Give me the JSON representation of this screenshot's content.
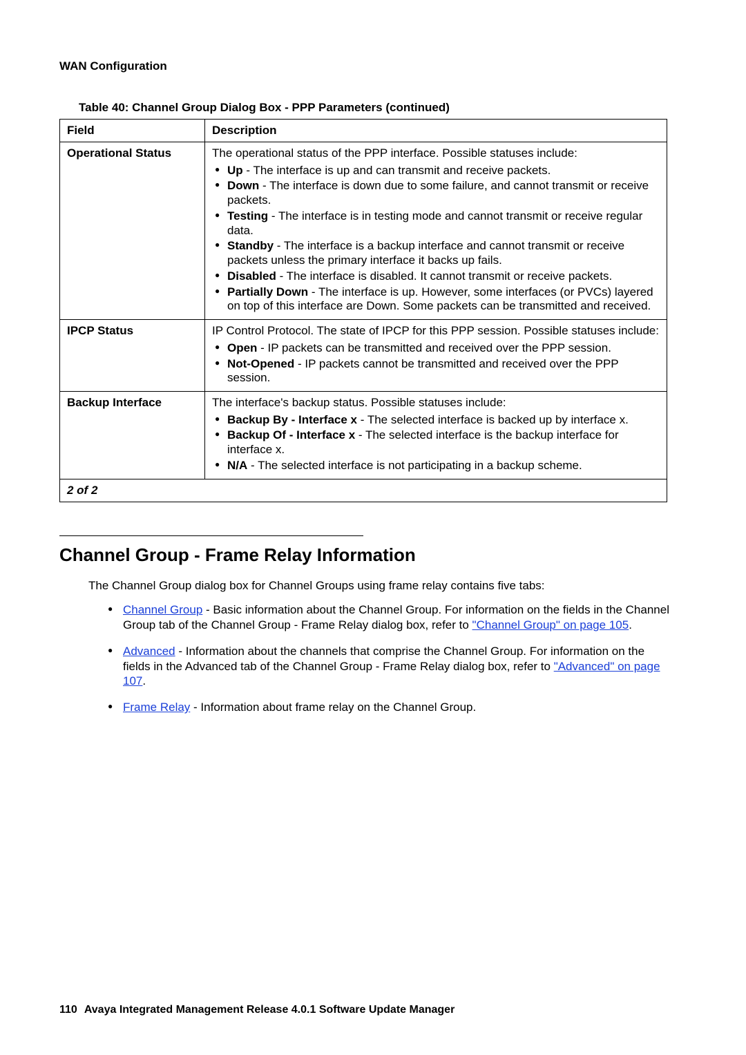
{
  "header": {
    "section": "WAN Configuration"
  },
  "table": {
    "caption": "Table 40: Channel Group Dialog Box - PPP Parameters (continued)",
    "headers": {
      "field": "Field",
      "description": "Description"
    },
    "rows": [
      {
        "field": "Operational Status",
        "lead": "The operational status of the PPP interface. Possible statuses include:",
        "items": [
          {
            "term": "Up",
            "text": " - The interface is up and can transmit and receive packets."
          },
          {
            "term": "Down",
            "text": " - The interface is down due to some failure, and cannot transmit or receive packets."
          },
          {
            "term": "Testing",
            "text": " - The interface is in testing mode and cannot transmit or receive regular data."
          },
          {
            "term": "Standby",
            "text": " - The interface is a backup interface and cannot transmit or receive packets unless the primary interface it backs up fails."
          },
          {
            "term": "Disabled",
            "text": " - The interface is disabled. It cannot transmit or receive packets."
          },
          {
            "term": "Partially Down",
            "text": " - The interface is up. However, some interfaces (or PVCs) layered on top of this interface are Down. Some packets can be transmitted and received."
          }
        ]
      },
      {
        "field": "IPCP Status",
        "lead": "IP Control Protocol. The state of IPCP for this PPP session. Possible statuses include:",
        "items": [
          {
            "term": "Open",
            "text": " - IP packets can be transmitted and received over the PPP session."
          },
          {
            "term": "Not-Opened",
            "text": " - IP packets cannot be transmitted and received over the PPP session."
          }
        ]
      },
      {
        "field": "Backup Interface",
        "lead": "The interface's backup status. Possible statuses include:",
        "items": [
          {
            "term": "Backup By - Interface x",
            "text": " - The selected interface is backed up by interface x."
          },
          {
            "term": "Backup Of - Interface x",
            "text": " - The selected interface is the backup interface for interface x."
          },
          {
            "term": "N/A",
            "text": " - The selected interface is not participating in a backup scheme."
          }
        ]
      }
    ],
    "pager": "2 of 2"
  },
  "section": {
    "title": "Channel Group - Frame Relay Information",
    "intro": "The Channel Group dialog box for Channel Groups using frame relay contains five tabs:",
    "bullets": [
      {
        "link": "Channel Group",
        "post1": " - Basic information about the Channel Group. For information on the fields in the Channel Group tab of the Channel Group - Frame Relay dialog box, refer to ",
        "link2": "\"Channel Group\" on page 105",
        "post2": "."
      },
      {
        "link": "Advanced",
        "post1": " - Information about the channels that comprise the Channel Group. For information on the fields in the Advanced tab of the Channel Group - Frame Relay dialog box, refer to ",
        "link2": "\"Advanced\" on page 107",
        "post2": "."
      },
      {
        "link": "Frame Relay",
        "post1": " - Information about frame relay on the Channel Group.",
        "link2": "",
        "post2": ""
      }
    ]
  },
  "footer": {
    "page": "110",
    "title": "Avaya Integrated Management Release 4.0.1 Software Update Manager"
  }
}
